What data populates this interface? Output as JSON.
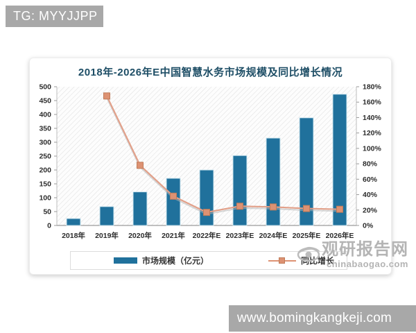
{
  "badge": {
    "text": "TG: MYYJJPP"
  },
  "watermark": {
    "site_name": "观研报告网",
    "site_domain": "chinabaogao.com"
  },
  "footer": {
    "url": "www.bomingkangkeji.com"
  },
  "chart_data": {
    "type": "bar+line",
    "title": "2018年-2026年E中国智慧水务市场规模及同比增长情况",
    "categories": [
      "2018年",
      "2019年",
      "2020年",
      "2021年",
      "2022年E",
      "2023年E",
      "2024年E",
      "2025年E",
      "2026年E"
    ],
    "series": [
      {
        "name": "市场规模（亿元）",
        "type": "bar",
        "axis": "left",
        "color": "#20719c",
        "edge_color": "#cfe6f0",
        "values": [
          25,
          68,
          121,
          170,
          200,
          252,
          315,
          388,
          473
        ]
      },
      {
        "name": "同比增长",
        "type": "line",
        "axis": "right",
        "color": "#e2a089",
        "marker_color": "#dd9273",
        "marker_edge": "#c07b58",
        "values": [
          null,
          168,
          78,
          38,
          17,
          25,
          24,
          22,
          21
        ]
      }
    ],
    "left_axis": {
      "min": 0,
      "max": 500,
      "step": 50,
      "tick_labels": [
        "0",
        "50",
        "100",
        "150",
        "200",
        "250",
        "300",
        "350",
        "400",
        "450",
        "500"
      ]
    },
    "right_axis": {
      "min": 0,
      "max": 180,
      "step": 20,
      "tick_labels": [
        "0%",
        "20%",
        "40%",
        "60%",
        "80%",
        "100%",
        "120%",
        "140%",
        "160%",
        "180%"
      ]
    },
    "grid": false,
    "legend_position": "bottom",
    "plot_background": "diagonal-hatch"
  }
}
